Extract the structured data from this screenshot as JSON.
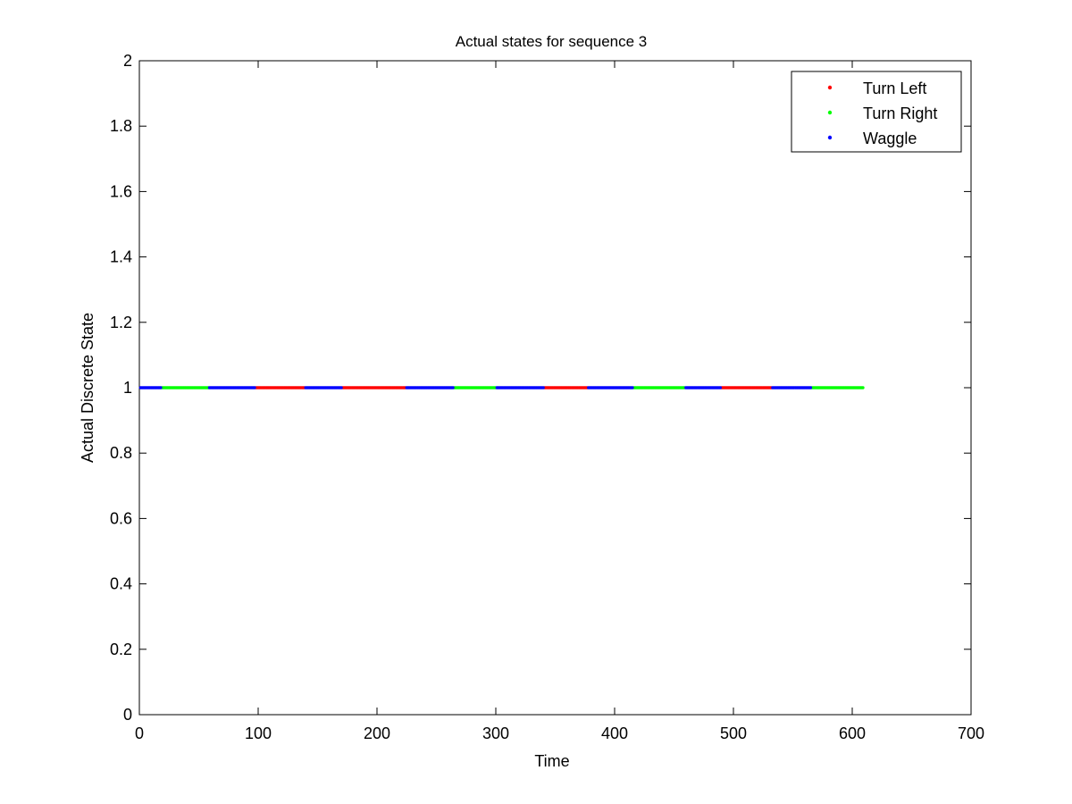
{
  "chart_data": {
    "type": "scatter",
    "title": "Actual states for sequence 3",
    "xlabel": "Time",
    "ylabel": "Actual Discrete State",
    "xlim": [
      0,
      700
    ],
    "ylim": [
      0,
      2
    ],
    "xticks": [
      0,
      100,
      200,
      300,
      400,
      500,
      600,
      700
    ],
    "yticks": [
      0,
      0.2,
      0.4,
      0.6,
      0.8,
      1,
      1.2,
      1.4,
      1.6,
      1.8,
      2
    ],
    "xtick_labels": [
      "0",
      "100",
      "200",
      "300",
      "400",
      "500",
      "600",
      "700"
    ],
    "ytick_labels": [
      "0",
      "0.2",
      "0.4",
      "0.6",
      "0.8",
      "1",
      "1.2",
      "1.4",
      "1.6",
      "1.8",
      "2"
    ],
    "grid": false,
    "legend_position": "top-right",
    "marker": "dot",
    "y_value": 1,
    "series": [
      {
        "name": "Turn Left",
        "color": "#ff0000",
        "segments": [
          [
            98,
            139
          ],
          [
            171,
            224
          ],
          [
            341,
            377
          ],
          [
            490,
            532
          ]
        ]
      },
      {
        "name": "Turn Right",
        "color": "#00ff00",
        "segments": [
          [
            19,
            58
          ],
          [
            265,
            300
          ],
          [
            416,
            459
          ],
          [
            566,
            609
          ]
        ]
      },
      {
        "name": "Waggle",
        "color": "#0000ff",
        "segments": [
          [
            1,
            18
          ],
          [
            59,
            97
          ],
          [
            140,
            170
          ],
          [
            225,
            264
          ],
          [
            301,
            340
          ],
          [
            378,
            415
          ],
          [
            460,
            489
          ],
          [
            533,
            565
          ]
        ]
      }
    ]
  }
}
